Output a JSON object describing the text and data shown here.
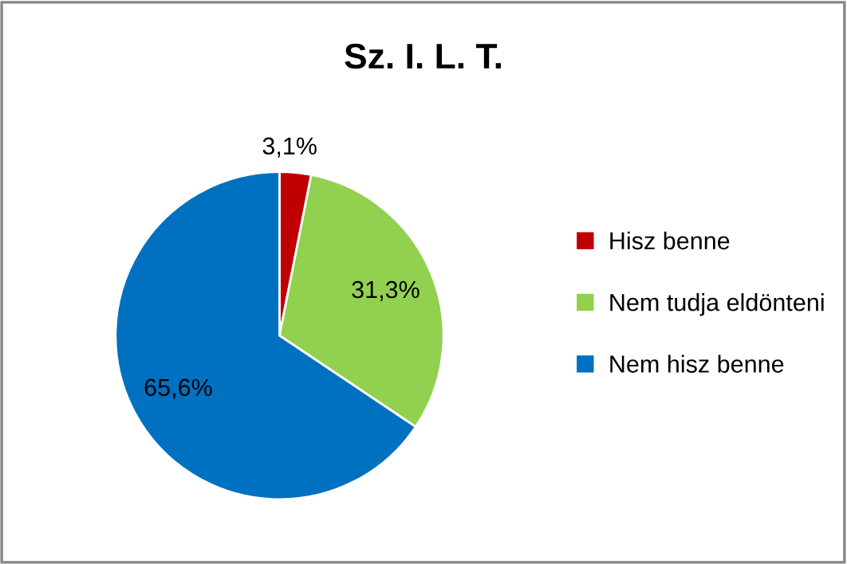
{
  "chart_data": {
    "type": "pie",
    "title": "Sz. I. L. T.",
    "categories": [
      "Hisz benne",
      "Nem tudja eldönteni",
      "Nem hisz benne"
    ],
    "values": [
      3.1,
      31.3,
      65.6
    ],
    "value_labels": [
      "3,1%",
      "31,3%",
      "65,6%"
    ],
    "colors": [
      "#c00000",
      "#92d050",
      "#0070c0"
    ],
    "legend": "right"
  }
}
